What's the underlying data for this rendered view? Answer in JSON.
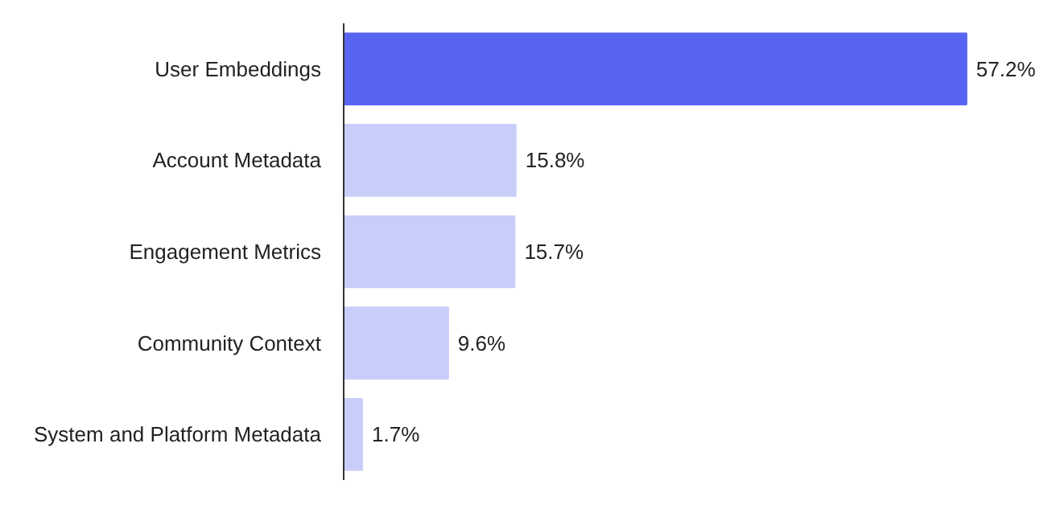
{
  "chart_data": {
    "type": "bar",
    "orientation": "horizontal",
    "categories": [
      "User Embeddings",
      "Account Metadata",
      "Engagement Metrics",
      "Community Context",
      "System and Platform Metadata"
    ],
    "values": [
      57.2,
      15.8,
      15.7,
      9.6,
      1.7
    ],
    "colors": [
      "#5865f2",
      "#c9cdf9",
      "#c9cdf9",
      "#c9cdf9",
      "#c9cdf9"
    ],
    "value_labels": [
      "57.2%",
      "15.8%",
      "15.7%",
      "9.6%",
      "1.7%"
    ],
    "grid": false
  }
}
